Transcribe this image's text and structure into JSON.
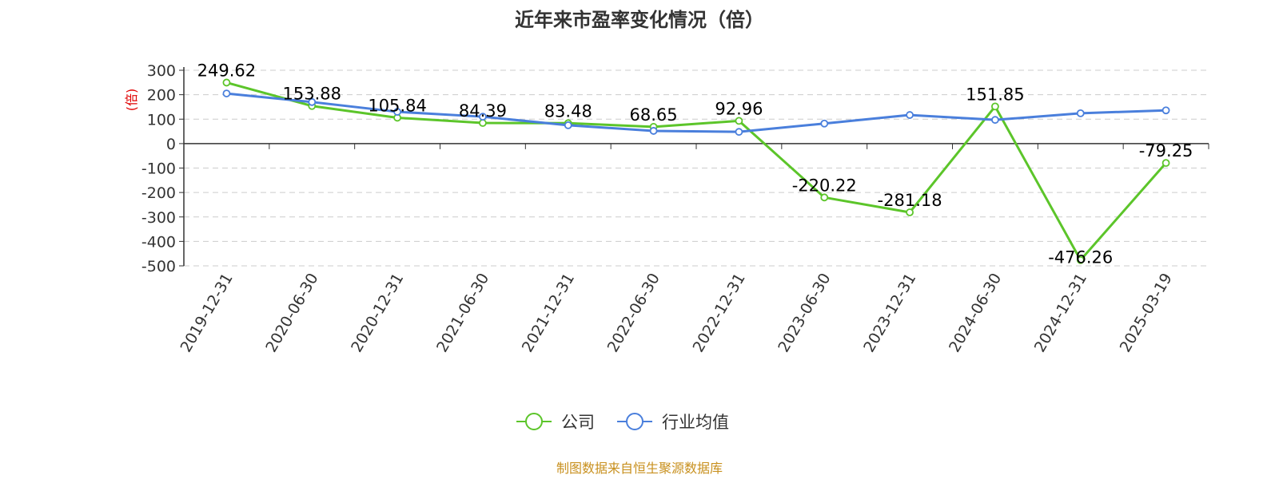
{
  "chart_data": {
    "type": "line",
    "title": "近年来市盈率变化情况（倍）",
    "ylabel": "(倍)",
    "categories": [
      "2019-12-31",
      "2020-06-30",
      "2020-12-31",
      "2021-06-30",
      "2021-12-31",
      "2022-06-30",
      "2022-12-31",
      "2023-06-30",
      "2023-12-31",
      "2024-06-30",
      "2024-12-31",
      "2025-03-19"
    ],
    "y_ticks": [
      "300",
      "200",
      "100",
      "0",
      "-100",
      "-200",
      "-300",
      "-400",
      "-500"
    ],
    "ylim": [
      -500,
      300
    ],
    "grid": true,
    "legend_position": "bottom",
    "series": [
      {
        "name": "公司",
        "color": "#5cc52a",
        "values": [
          249.62,
          153.88,
          105.84,
          84.39,
          83.48,
          68.65,
          92.96,
          -220.22,
          -281.18,
          151.85,
          -476.26,
          -79.25
        ],
        "labels": [
          "249.62",
          "153.88",
          "105.84",
          "84.39",
          "83.48",
          "68.65",
          "92.96",
          "-220.22",
          "-281.18",
          "151.85",
          "-476.26",
          "-79.25"
        ]
      },
      {
        "name": "行业均值",
        "color": "#4a7fdc",
        "values": [
          205,
          170,
          130,
          110,
          75,
          52,
          48,
          82,
          117,
          97,
          124,
          136
        ]
      }
    ],
    "source": "制图数据来自恒生聚源数据库"
  }
}
